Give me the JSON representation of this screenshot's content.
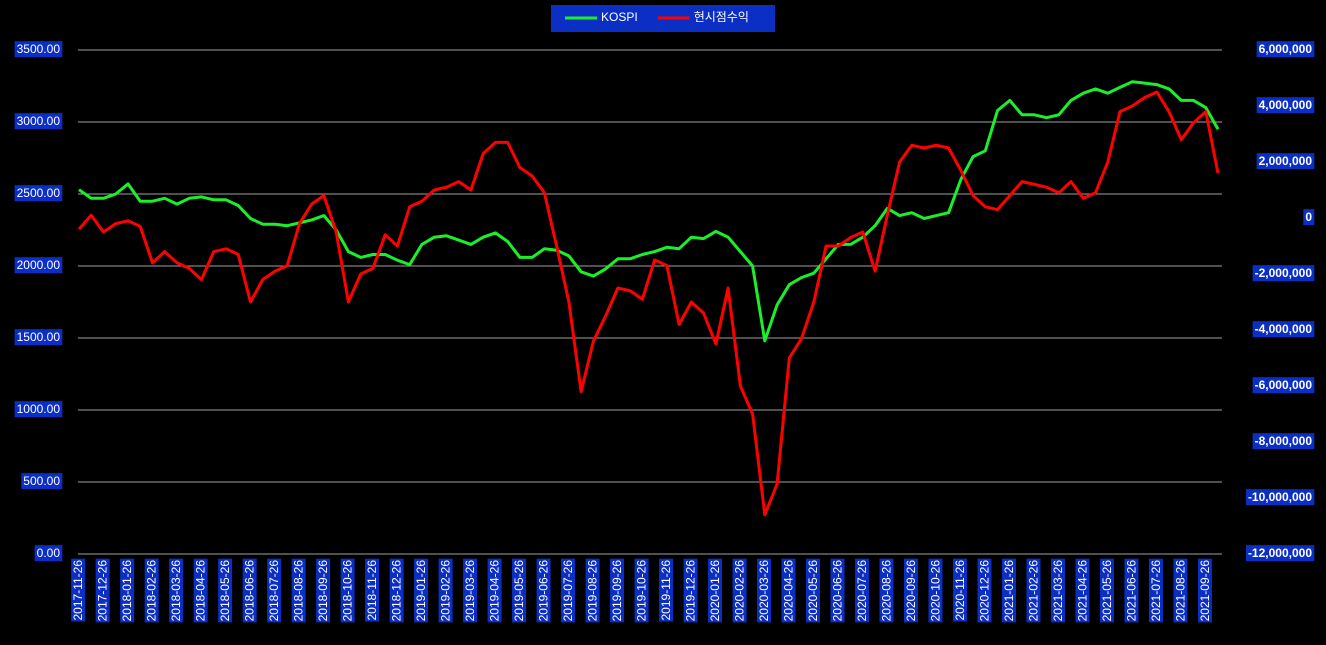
{
  "chart_data": {
    "type": "line",
    "categories": [
      "2017-11-26",
      null,
      "2017-12-26",
      null,
      "2018-01-26",
      null,
      "2018-02-26",
      null,
      "2018-03-26",
      null,
      "2018-04-26",
      null,
      "2018-05-26",
      null,
      "2018-06-26",
      null,
      "2018-07-26",
      null,
      "2018-08-26",
      null,
      "2018-09-26",
      null,
      "2018-10-26",
      null,
      "2018-11-26",
      null,
      "2018-12-26",
      null,
      "2019-01-26",
      null,
      "2019-02-26",
      null,
      "2019-03-26",
      null,
      "2019-04-26",
      null,
      "2019-05-26",
      null,
      "2019-06-26",
      null,
      "2019-07-26",
      null,
      "2019-08-26",
      null,
      "2019-09-26",
      null,
      "2019-10-26",
      null,
      "2019-11-26",
      null,
      "2019-12-26",
      null,
      "2020-01-26",
      null,
      "2020-02-26",
      null,
      "2020-03-26",
      null,
      "2020-04-26",
      null,
      "2020-05-26",
      null,
      "2020-06-26",
      null,
      "2020-07-26",
      null,
      "2020-08-26",
      null,
      "2020-09-26",
      null,
      "2020-10-26",
      null,
      "2020-11-26",
      null,
      "2020-12-26",
      null,
      "2021-01-26",
      null,
      "2021-02-26",
      null,
      "2021-03-26",
      null,
      "2021-04-26",
      null,
      "2021-05-26",
      null,
      "2021-06-26",
      null,
      "2021-07-26",
      null,
      "2021-08-26",
      null,
      "2021-09-26",
      null
    ],
    "series": [
      {
        "name": "KOSPI",
        "color": "#19f02a",
        "values": [
          2530,
          2470,
          2470,
          2500,
          2570,
          2450,
          2450,
          2470,
          2430,
          2470,
          2480,
          2460,
          2460,
          2420,
          2330,
          2290,
          2290,
          2280,
          2300,
          2320,
          2350,
          2250,
          2100,
          2060,
          2080,
          2080,
          2040,
          2010,
          2150,
          2200,
          2210,
          2180,
          2150,
          2200,
          2230,
          2170,
          2060,
          2060,
          2120,
          2110,
          2070,
          1960,
          1930,
          1980,
          2050,
          2050,
          2080,
          2100,
          2130,
          2120,
          2200,
          2190,
          2240,
          2200,
          2100,
          2000,
          1480,
          1730,
          1870,
          1920,
          1950,
          2050,
          2150,
          2150,
          2200,
          2280,
          2400,
          2350,
          2370,
          2330,
          2350,
          2370,
          2600,
          2760,
          2800,
          3080,
          3150,
          3050,
          3050,
          3030,
          3050,
          3150,
          3200,
          3230,
          3200,
          3240,
          3280,
          3270,
          3260,
          3230,
          3150,
          3150,
          3100,
          2950
        ]
      },
      {
        "name": "현시점수익",
        "color": "#ff0000",
        "axis": "y2",
        "values": [
          -400000,
          100000,
          -500000,
          -200000,
          -100000,
          -300000,
          -1600000,
          -1200000,
          -1600000,
          -1800000,
          -2200000,
          -1200000,
          -1100000,
          -1300000,
          -3000000,
          -2200000,
          -1900000,
          -1700000,
          -200000,
          500000,
          800000,
          -500000,
          -3000000,
          -2000000,
          -1800000,
          -600000,
          -1000000,
          400000,
          600000,
          1000000,
          1100000,
          1300000,
          1000000,
          2300000,
          2700000,
          2700000,
          1800000,
          1500000,
          900000,
          -1000000,
          -3000000,
          -6200000,
          -4400000,
          -3500000,
          -2500000,
          -2600000,
          -2900000,
          -1500000,
          -1700000,
          -3800000,
          -3000000,
          -3400000,
          -4500000,
          -2500000,
          -6000000,
          -7000000,
          -10600000,
          -9500000,
          -5000000,
          -4300000,
          -3000000,
          -1000000,
          -1000000,
          -700000,
          -500000,
          -1900000,
          100000,
          2000000,
          2600000,
          2500000,
          2600000,
          2500000,
          1700000,
          800000,
          400000,
          300000,
          800000,
          1300000,
          1200000,
          1100000,
          900000,
          1300000,
          700000,
          900000,
          2000000,
          3800000,
          4000000,
          4300000,
          4500000,
          3800000,
          2800000,
          3400000,
          3800000,
          1600000
        ]
      }
    ],
    "ylim": [
      0,
      3500
    ],
    "yticks": [
      {
        "value": 0,
        "label": "0.00"
      },
      {
        "value": 500,
        "label": "500.00"
      },
      {
        "value": 1000,
        "label": "1000.00"
      },
      {
        "value": 1500,
        "label": "1500.00"
      },
      {
        "value": 2000,
        "label": "2000.00"
      },
      {
        "value": 2500,
        "label": "2500.00"
      },
      {
        "value": 3000,
        "label": "3000.00"
      },
      {
        "value": 3500,
        "label": "3500.00"
      }
    ],
    "y2lim": [
      -12000000,
      6000000
    ],
    "y2ticks": [
      {
        "value": -12000000,
        "label": "-12,000,000"
      },
      {
        "value": -10000000,
        "label": "-10,000,000"
      },
      {
        "value": -8000000,
        "label": "-8,000,000"
      },
      {
        "value": -6000000,
        "label": "-6,000,000"
      },
      {
        "value": -4000000,
        "label": "-4,000,000"
      },
      {
        "value": -2000000,
        "label": "-2,000,000"
      },
      0,
      {
        "value": 2000000,
        "label": "2,000,000"
      },
      {
        "value": 4000000,
        "label": "4,000,000"
      },
      {
        "value": 6000000,
        "label": "6,000,000"
      }
    ],
    "grid": true,
    "legend": "top"
  }
}
